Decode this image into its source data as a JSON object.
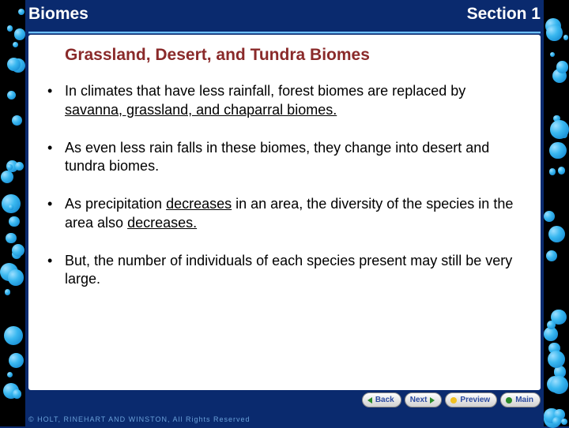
{
  "header": {
    "left": "Biomes",
    "right": "Section 1"
  },
  "slide": {
    "title": "Grassland, Desert, and Tundra Biomes",
    "bullets": [
      {
        "pre": "In climates that have less rainfall, forest biomes are replaced by ",
        "u": "savanna, grassland, and chaparral biomes.",
        "post": ""
      },
      {
        "pre": "As even less rain falls in these biomes, they change into desert and tundra biomes.",
        "u": "",
        "post": ""
      },
      {
        "pre": "As precipitation ",
        "u": "decreases",
        "mid": " in an area, the diversity of the species in the area also ",
        "u2": "decreases.",
        "post": ""
      },
      {
        "pre": "But, the number of individuals of each species present may still be very large.",
        "u": "",
        "post": ""
      }
    ]
  },
  "nav": {
    "back": "Back",
    "next": "Next",
    "preview": "Preview",
    "main": "Main"
  },
  "footer": "© HOLT, RINEHART AND WINSTON, All Rights Reserved",
  "colors": {
    "background": "#0a2a6e",
    "title": "#8a2a2a",
    "header_text": "#ffffff"
  }
}
